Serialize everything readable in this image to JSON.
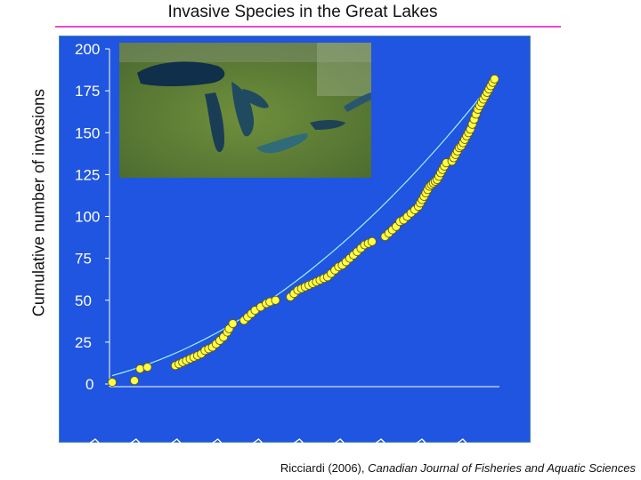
{
  "page": {
    "source_author": "Ricciardi (2006), ",
    "source_journal": "Canadian Journal of Fisheries and Aquatic Sciences"
  },
  "colors": {
    "plot_background": "#1f55e0",
    "frame": "#4f8a9a",
    "title_rule": "#e64ad2",
    "marker_fill": "#ffff44",
    "marker_stroke": "#6a5a10",
    "trend_line": "#9ff3ff",
    "tick_text": "#ffffff"
  },
  "inset_image": {
    "description_icon": "great-lakes-satellite-photo"
  },
  "chart_data": {
    "type": "scatter",
    "title": "Invasive Species in the Great Lakes",
    "xlabel": "",
    "ylabel": "Cumulative number of invasions",
    "ylim": [
      0,
      200
    ],
    "yticks": [
      0,
      25,
      50,
      75,
      100,
      125,
      150,
      175,
      200
    ],
    "xlim": [
      0,
      100
    ],
    "x_tick_positions": [
      0,
      11,
      22,
      33,
      44,
      55,
      66,
      77,
      88,
      99
    ],
    "grid": false,
    "legend": "none",
    "trend": {
      "type": "curve",
      "y_start": 5
    },
    "points": [
      [
        0,
        1
      ],
      [
        6,
        2
      ],
      [
        7.5,
        9
      ],
      [
        9.5,
        10
      ],
      [
        17,
        11
      ],
      [
        18,
        12
      ],
      [
        19,
        13
      ],
      [
        20,
        14
      ],
      [
        21,
        15
      ],
      [
        22,
        16
      ],
      [
        23,
        17
      ],
      [
        24,
        18
      ],
      [
        25,
        20
      ],
      [
        26,
        21
      ],
      [
        27,
        22
      ],
      [
        28,
        24
      ],
      [
        29,
        26
      ],
      [
        30,
        28
      ],
      [
        31,
        31
      ],
      [
        31.5,
        33
      ],
      [
        32.5,
        36
      ],
      [
        35.5,
        38
      ],
      [
        36.5,
        40
      ],
      [
        37.5,
        42
      ],
      [
        38.5,
        44
      ],
      [
        40,
        46
      ],
      [
        41.5,
        48
      ],
      [
        42.5,
        49
      ],
      [
        44,
        50
      ],
      [
        48,
        52
      ],
      [
        49,
        54
      ],
      [
        50,
        56
      ],
      [
        51,
        57
      ],
      [
        52,
        58
      ],
      [
        53,
        59
      ],
      [
        54,
        60
      ],
      [
        55,
        61
      ],
      [
        56,
        62
      ],
      [
        57,
        63
      ],
      [
        58,
        64
      ],
      [
        59,
        66
      ],
      [
        60,
        68
      ],
      [
        61,
        70
      ],
      [
        62,
        71
      ],
      [
        63,
        73
      ],
      [
        64,
        75
      ],
      [
        65,
        77
      ],
      [
        66,
        79
      ],
      [
        67,
        81
      ],
      [
        68,
        83
      ],
      [
        69,
        84
      ],
      [
        70,
        85
      ],
      [
        73.5,
        88
      ],
      [
        74.5,
        90
      ],
      [
        75.5,
        92
      ],
      [
        76.5,
        94
      ],
      [
        77.5,
        97
      ],
      [
        78.5,
        98
      ],
      [
        79.5,
        100
      ],
      [
        80.5,
        102
      ],
      [
        81.5,
        104
      ],
      [
        82.5,
        106
      ],
      [
        83,
        108
      ],
      [
        83.5,
        110
      ],
      [
        84,
        112
      ],
      [
        84.5,
        114
      ],
      [
        85,
        116
      ],
      [
        85.5,
        118
      ],
      [
        86,
        119
      ],
      [
        86.5,
        120
      ],
      [
        87,
        121
      ],
      [
        87.5,
        122
      ],
      [
        88,
        124
      ],
      [
        88.5,
        126
      ],
      [
        89,
        128
      ],
      [
        89.5,
        130
      ],
      [
        90,
        132
      ],
      [
        91.5,
        133
      ],
      [
        92,
        135
      ],
      [
        92.5,
        137
      ],
      [
        93,
        139
      ],
      [
        93.5,
        141
      ],
      [
        94,
        142
      ],
      [
        94.5,
        144
      ],
      [
        95,
        146
      ],
      [
        95.5,
        148
      ],
      [
        96,
        150
      ],
      [
        96.5,
        152
      ],
      [
        97,
        155
      ],
      [
        97.5,
        158
      ],
      [
        98,
        161
      ],
      [
        98.5,
        164
      ],
      [
        99,
        166
      ],
      [
        99.5,
        168
      ],
      [
        100,
        170
      ],
      [
        100.5,
        172
      ],
      [
        101,
        174
      ],
      [
        101.5,
        176
      ],
      [
        102,
        178
      ],
      [
        102.5,
        180
      ],
      [
        103,
        182
      ]
    ]
  }
}
